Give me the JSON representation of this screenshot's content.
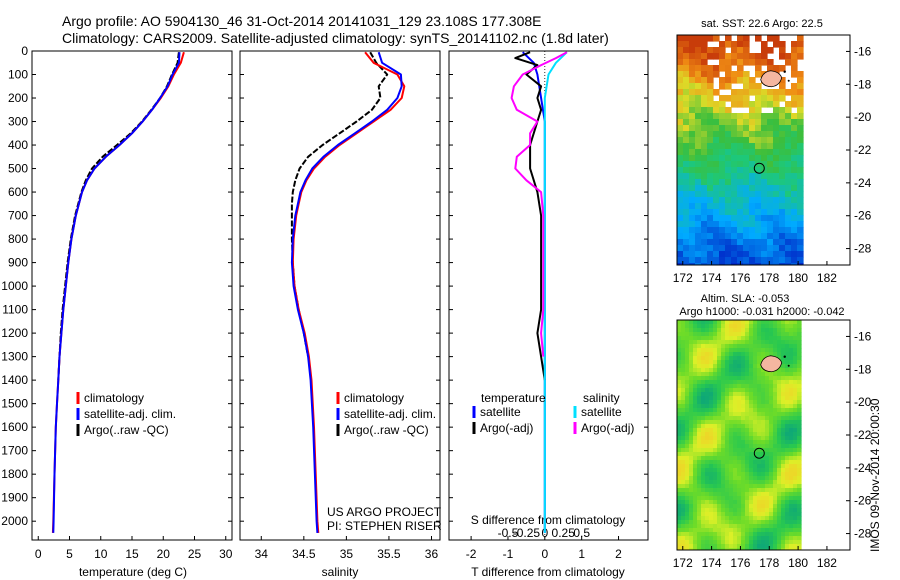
{
  "header": {
    "line1": "Argo profile: AO 5904130_46 31-Oct-2014 20141031_129 23.108S 177.308E",
    "line2": "Climatology: CARS2009. Satellite-adjusted climatology: synTS_20141102.nc (1.8d later)"
  },
  "panels_text": {
    "credit1": "US ARGO PROJECT",
    "credit2": "PI: STEPHEN RISER",
    "sdiff_label": "S difference from climatology",
    "stamp": "IMOS 09-Nov-2014 20:00:30",
    "sst_title": "sat. SST: 22.6 Argo: 22.5",
    "sla_title1": "Altim. SLA: -0.053",
    "sla_title2": "Argo h1000: -0.031 h2000: -0.042"
  },
  "colors": {
    "climatology": "#ff0000",
    "satellite_adj": "#0000ff",
    "argo_temp": "#000000",
    "argo_sal": "#ff00ff",
    "sat_sal": "#00e0ff",
    "land": "#f4b6a0"
  },
  "chart_data": [
    {
      "type": "line",
      "id": "temperature",
      "xlabel": "temperature (deg C)",
      "xlim": [
        -1,
        31
      ],
      "ylim": [
        2080,
        0
      ],
      "xticks": [
        0,
        5,
        10,
        15,
        20,
        25,
        30
      ],
      "yticks": [
        0,
        100,
        200,
        300,
        400,
        500,
        600,
        700,
        800,
        900,
        1000,
        1100,
        1200,
        1300,
        1400,
        1500,
        1600,
        1700,
        1800,
        1900,
        2000
      ],
      "legend": [
        "climatology",
        "satellite-adj. clim.",
        "Argo(..raw -QC)"
      ],
      "series": [
        {
          "name": "climatology",
          "depth": [
            5,
            50,
            100,
            150,
            200,
            250,
            300,
            350,
            400,
            450,
            500,
            550,
            600,
            700,
            800,
            900,
            1000,
            1100,
            1200,
            1300,
            1400,
            1500,
            1600,
            1800,
            2000,
            2050
          ],
          "values": [
            23.3,
            22.8,
            21.7,
            20.8,
            19.6,
            18.2,
            16.7,
            15.0,
            13.0,
            10.8,
            9.0,
            7.8,
            7.0,
            6.0,
            5.3,
            4.8,
            4.4,
            4.0,
            3.7,
            3.4,
            3.2,
            3.0,
            2.8,
            2.6,
            2.4,
            2.35
          ]
        },
        {
          "name": "satellite-adj. clim.",
          "depth": [
            5,
            50,
            100,
            150,
            200,
            250,
            300,
            350,
            400,
            450,
            500,
            550,
            600,
            700,
            800,
            900,
            1000,
            1100,
            1200,
            1300,
            1400,
            1500,
            1600,
            1800,
            2000,
            2050
          ],
          "values": [
            22.6,
            22.5,
            21.5,
            20.7,
            19.5,
            18.2,
            16.7,
            15.0,
            13.0,
            10.8,
            9.0,
            7.8,
            7.0,
            6.0,
            5.3,
            4.8,
            4.4,
            4.0,
            3.7,
            3.4,
            3.2,
            3.0,
            2.8,
            2.6,
            2.45,
            2.4
          ]
        },
        {
          "name": "Argo(..raw -QC)",
          "depth": [
            5,
            50,
            100,
            150,
            200,
            250,
            300,
            350,
            400,
            450,
            500,
            550,
            600,
            700,
            800,
            900,
            1000,
            1100,
            1200,
            1300,
            1400
          ],
          "values": [
            22.5,
            22.3,
            21.4,
            20.6,
            19.5,
            18.1,
            16.6,
            14.8,
            12.6,
            10.3,
            8.6,
            7.6,
            6.9,
            5.9,
            5.2,
            4.7,
            4.3,
            3.9,
            3.6,
            3.4,
            3.2
          ]
        }
      ]
    },
    {
      "type": "line",
      "id": "salinity",
      "xlabel": "salinity",
      "xlim": [
        33.75,
        36.1
      ],
      "ylim": [
        2080,
        0
      ],
      "xticks": [
        34,
        34.5,
        35,
        35.5,
        36
      ],
      "legend": [
        "climatology",
        "satellite-adj. clim.",
        "Argo(..raw -QC)"
      ],
      "series": [
        {
          "name": "climatology",
          "depth": [
            5,
            50,
            100,
            150,
            200,
            250,
            300,
            350,
            400,
            450,
            500,
            550,
            600,
            650,
            700,
            800,
            900,
            1000,
            1100,
            1200,
            1300,
            1400,
            1600,
            1800,
            2000,
            2050
          ],
          "values": [
            35.22,
            35.32,
            35.6,
            35.68,
            35.65,
            35.52,
            35.32,
            35.12,
            34.92,
            34.75,
            34.62,
            34.53,
            34.47,
            34.44,
            34.41,
            34.38,
            34.37,
            34.39,
            34.44,
            34.51,
            34.56,
            34.59,
            34.62,
            34.64,
            34.66,
            34.67
          ]
        },
        {
          "name": "satellite-adj. clim.",
          "depth": [
            5,
            50,
            100,
            150,
            200,
            250,
            300,
            350,
            400,
            450,
            500,
            550,
            600,
            650,
            700,
            800,
            900,
            1000,
            1100,
            1200,
            1300,
            1400,
            1600,
            1800,
            2000,
            2050
          ],
          "values": [
            35.38,
            35.42,
            35.64,
            35.65,
            35.6,
            35.48,
            35.3,
            35.1,
            34.9,
            34.73,
            34.6,
            34.52,
            34.46,
            34.43,
            34.4,
            34.37,
            34.36,
            34.38,
            34.43,
            34.5,
            34.55,
            34.58,
            34.61,
            34.63,
            34.65,
            34.66
          ]
        },
        {
          "name": "Argo(..raw -QC)",
          "depth": [
            5,
            50,
            100,
            150,
            200,
            250,
            300,
            350,
            400,
            450,
            500,
            550,
            600,
            650,
            700,
            800,
            900,
            1000,
            1100,
            1200,
            1300
          ],
          "values": [
            35.28,
            35.35,
            35.48,
            35.38,
            35.4,
            35.3,
            35.12,
            34.92,
            34.72,
            34.55,
            34.45,
            34.4,
            34.37,
            34.36,
            34.36,
            34.36,
            34.37,
            34.39,
            34.44,
            34.5,
            34.55
          ]
        }
      ]
    },
    {
      "type": "line",
      "id": "differences",
      "xlabel": "T difference from climatology",
      "xlim": [
        -2.6,
        2.8
      ],
      "ylim": [
        2080,
        0
      ],
      "xticks": [
        -2,
        -1,
        0,
        1,
        2
      ],
      "xticks_top": [
        -0.5,
        -0.25,
        0,
        0.25,
        0.5
      ],
      "legend": [
        "temperature",
        "satellite",
        "Argo(-adj)",
        "salinity",
        "satellite",
        "Argo(-adj)"
      ],
      "series": [
        {
          "name": "satellite",
          "depth": [
            5,
            50,
            100,
            200,
            300,
            400,
            500,
            700,
            1000,
            1500,
            2050
          ],
          "values": [
            -0.6,
            -0.3,
            -0.2,
            -0.1,
            0,
            0,
            0,
            0,
            0,
            0,
            0
          ]
        },
        {
          "name": "Argo(-adj)",
          "depth": [
            5,
            30,
            60,
            100,
            150,
            200,
            250,
            300,
            400,
            500,
            600,
            700,
            800,
            900,
            1000,
            1100,
            1200,
            1300,
            1400
          ],
          "values": [
            -0.4,
            -0.8,
            -0.2,
            -0.5,
            -0.1,
            -0.2,
            -0.1,
            -0.2,
            -0.4,
            -0.4,
            -0.2,
            -0.1,
            -0.1,
            -0.1,
            -0.1,
            -0.1,
            -0.2,
            -0.1,
            0
          ]
        },
        {
          "name": "satellite",
          "depth": [
            5,
            50,
            100,
            200,
            300,
            400,
            500,
            700,
            1000,
            1500,
            2050
          ],
          "values": [
            0.3,
            0.15,
            0.05,
            0,
            0,
            0,
            0,
            0,
            0,
            0,
            0
          ]
        },
        {
          "name": "Argo(-adj)",
          "depth": [
            5,
            30,
            60,
            100,
            150,
            200,
            250,
            300,
            350,
            400,
            450,
            500,
            550,
            600,
            700,
            800,
            900,
            1000,
            1100,
            1200,
            1300
          ],
          "values": [
            0.3,
            0.15,
            -0.05,
            -0.3,
            -0.42,
            -0.45,
            -0.38,
            -0.1,
            -0.2,
            -0.2,
            -0.38,
            -0.4,
            -0.25,
            -0.05,
            -0.02,
            -0.02,
            -0.02,
            -0.02,
            -0.02,
            -0.05,
            -0.02
          ]
        }
      ]
    },
    {
      "type": "heatmap",
      "id": "sst_map",
      "title": "sat. SST: 22.6 Argo: 22.5",
      "xlim": [
        171.6,
        183.6
      ],
      "ylim": [
        -29.0,
        -15.0
      ],
      "xticks": [
        172,
        174,
        176,
        178,
        180,
        182
      ],
      "yticks": [
        -16,
        -18,
        -20,
        -22,
        -24,
        -26,
        -28
      ],
      "argo_position": [
        177.308,
        -23.108
      ]
    },
    {
      "type": "heatmap",
      "id": "sla_map",
      "title": "Altim. SLA: -0.053",
      "xlim": [
        171.6,
        183.6
      ],
      "ylim": [
        -29.0,
        -15.0
      ],
      "xticks": [
        172,
        174,
        176,
        178,
        180,
        182
      ],
      "yticks": [
        -16,
        -18,
        -20,
        -22,
        -24,
        -26,
        -28
      ],
      "argo_position": [
        177.308,
        -23.108
      ]
    }
  ]
}
